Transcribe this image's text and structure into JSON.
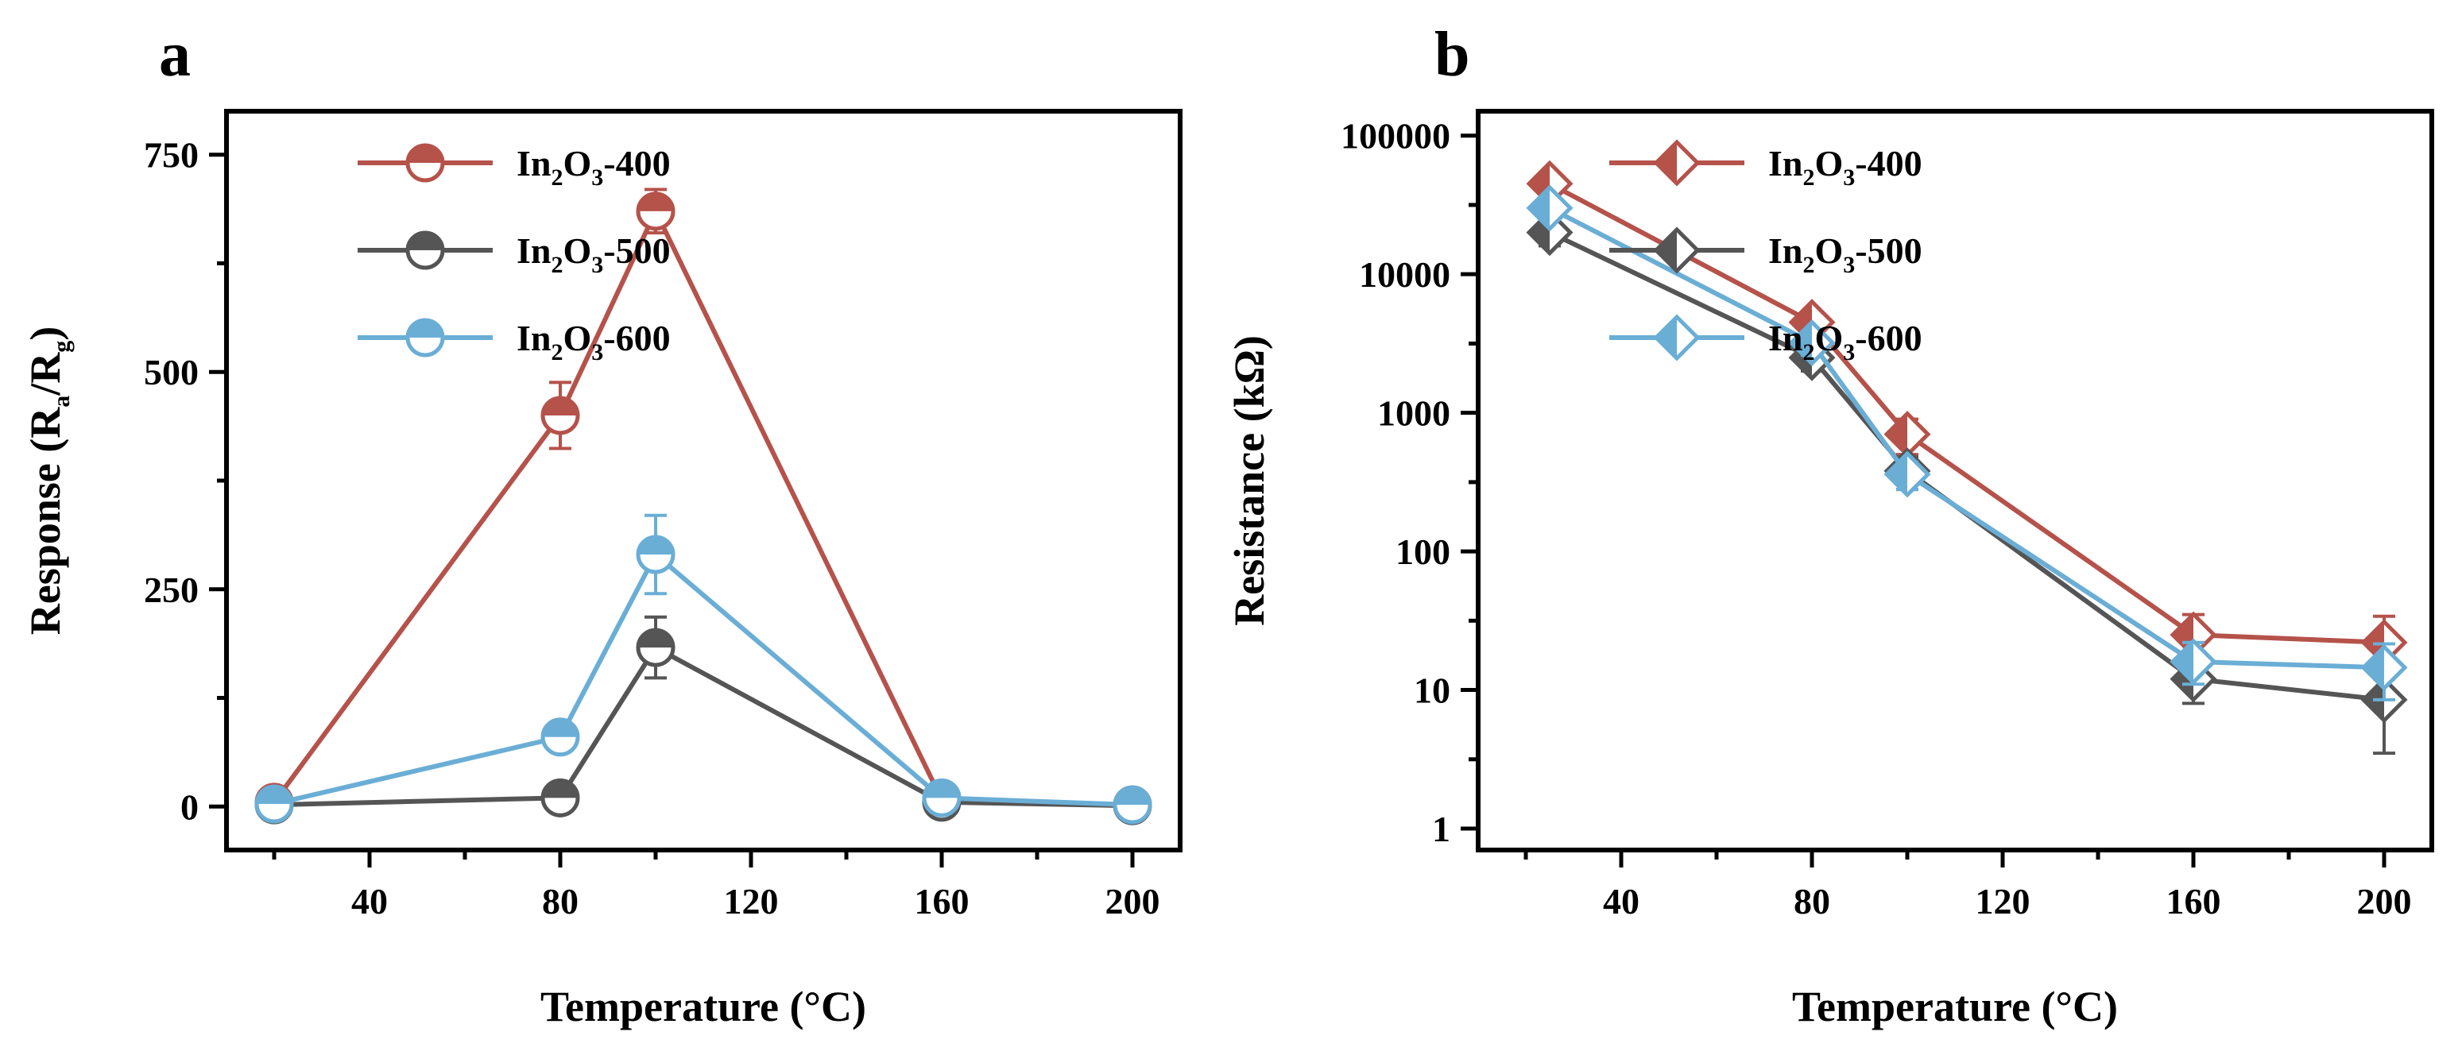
{
  "figure": {
    "colors": {
      "400": "#b5524a",
      "500": "#555555",
      "600": "#6aaed6"
    }
  },
  "chart_data": [
    {
      "panel": "a",
      "type": "line",
      "title": "",
      "xlabel": "Temperature (°C)",
      "ylabel_parts": {
        "base": "Response (R",
        "sub1": "a",
        "mid": "/R",
        "sub2": "g",
        "end": ")"
      },
      "xlim": [
        10,
        210
      ],
      "ylim": [
        -50,
        800
      ],
      "xticks": [
        40,
        80,
        120,
        160,
        200
      ],
      "xtick_labels": [
        "40",
        "80",
        "120",
        "160",
        "200"
      ],
      "yticks": [
        0,
        250,
        500,
        750
      ],
      "ytick_labels": [
        "0",
        "250",
        "500",
        "750"
      ],
      "yscale": "linear",
      "marker": "half-circle",
      "legend_position": "top-right",
      "series": [
        {
          "key": "400",
          "label_parts": {
            "a": "In",
            "s1": "2",
            "b": "O",
            "s2": "3",
            "c": "-400"
          },
          "x": [
            20,
            80,
            100,
            160,
            200
          ],
          "y": [
            5,
            450,
            685,
            8,
            2
          ],
          "err": [
            5,
            38,
            25,
            5,
            3
          ]
        },
        {
          "key": "500",
          "label_parts": {
            "a": "In",
            "s1": "2",
            "b": "O",
            "s2": "3",
            "c": "-500"
          },
          "x": [
            20,
            80,
            100,
            160,
            200
          ],
          "y": [
            2,
            10,
            183,
            5,
            1
          ],
          "err": [
            3,
            8,
            35,
            5,
            2
          ]
        },
        {
          "key": "600",
          "label_parts": {
            "a": "In",
            "s1": "2",
            "b": "O",
            "s2": "3",
            "c": "-600"
          },
          "x": [
            20,
            80,
            100,
            160,
            200
          ],
          "y": [
            3,
            80,
            290,
            10,
            2
          ],
          "err": [
            4,
            15,
            45,
            6,
            3
          ]
        }
      ]
    },
    {
      "panel": "b",
      "type": "line",
      "title": "",
      "xlabel": "Temperature (°C)",
      "ylabel": "Resistance (kΩ)",
      "xlim": [
        10,
        210
      ],
      "ylim": [
        0.7,
        150000
      ],
      "xticks": [
        40,
        80,
        120,
        160,
        200
      ],
      "xtick_labels": [
        "40",
        "80",
        "120",
        "160",
        "200"
      ],
      "yticks": [
        1,
        10,
        100,
        1000,
        10000,
        100000
      ],
      "ytick_labels": [
        "1",
        "10",
        "100",
        "1000",
        "10000",
        "100000"
      ],
      "yscale": "log",
      "marker": "half-diamond",
      "legend_position": "top-right",
      "series": [
        {
          "key": "400",
          "label_parts": {
            "a": "In",
            "s1": "2",
            "b": "O",
            "s2": "3",
            "c": "-400"
          },
          "x": [
            25,
            80,
            100,
            160,
            200
          ],
          "y": [
            45000,
            4500,
            700,
            25,
            22
          ],
          "err_lo": [
            8000,
            800,
            200,
            8,
            10
          ],
          "err_hi": [
            8000,
            800,
            200,
            10,
            12
          ]
        },
        {
          "key": "500",
          "label_parts": {
            "a": "In",
            "s1": "2",
            "b": "O",
            "s2": "3",
            "c": "-500"
          },
          "x": [
            25,
            80,
            100,
            160,
            200
          ],
          "y": [
            20000,
            2500,
            380,
            12,
            8.5
          ],
          "err_lo": [
            4000,
            500,
            100,
            4,
            5
          ],
          "err_hi": [
            4000,
            500,
            100,
            5,
            6
          ]
        },
        {
          "key": "600",
          "label_parts": {
            "a": "In",
            "s1": "2",
            "b": "O",
            "s2": "3",
            "c": "-600"
          },
          "x": [
            25,
            80,
            100,
            160,
            200
          ],
          "y": [
            30000,
            3200,
            360,
            16,
            14.5
          ],
          "err_lo": [
            5000,
            600,
            80,
            5,
            6
          ],
          "err_hi": [
            5000,
            600,
            80,
            6,
            7
          ]
        }
      ]
    }
  ]
}
